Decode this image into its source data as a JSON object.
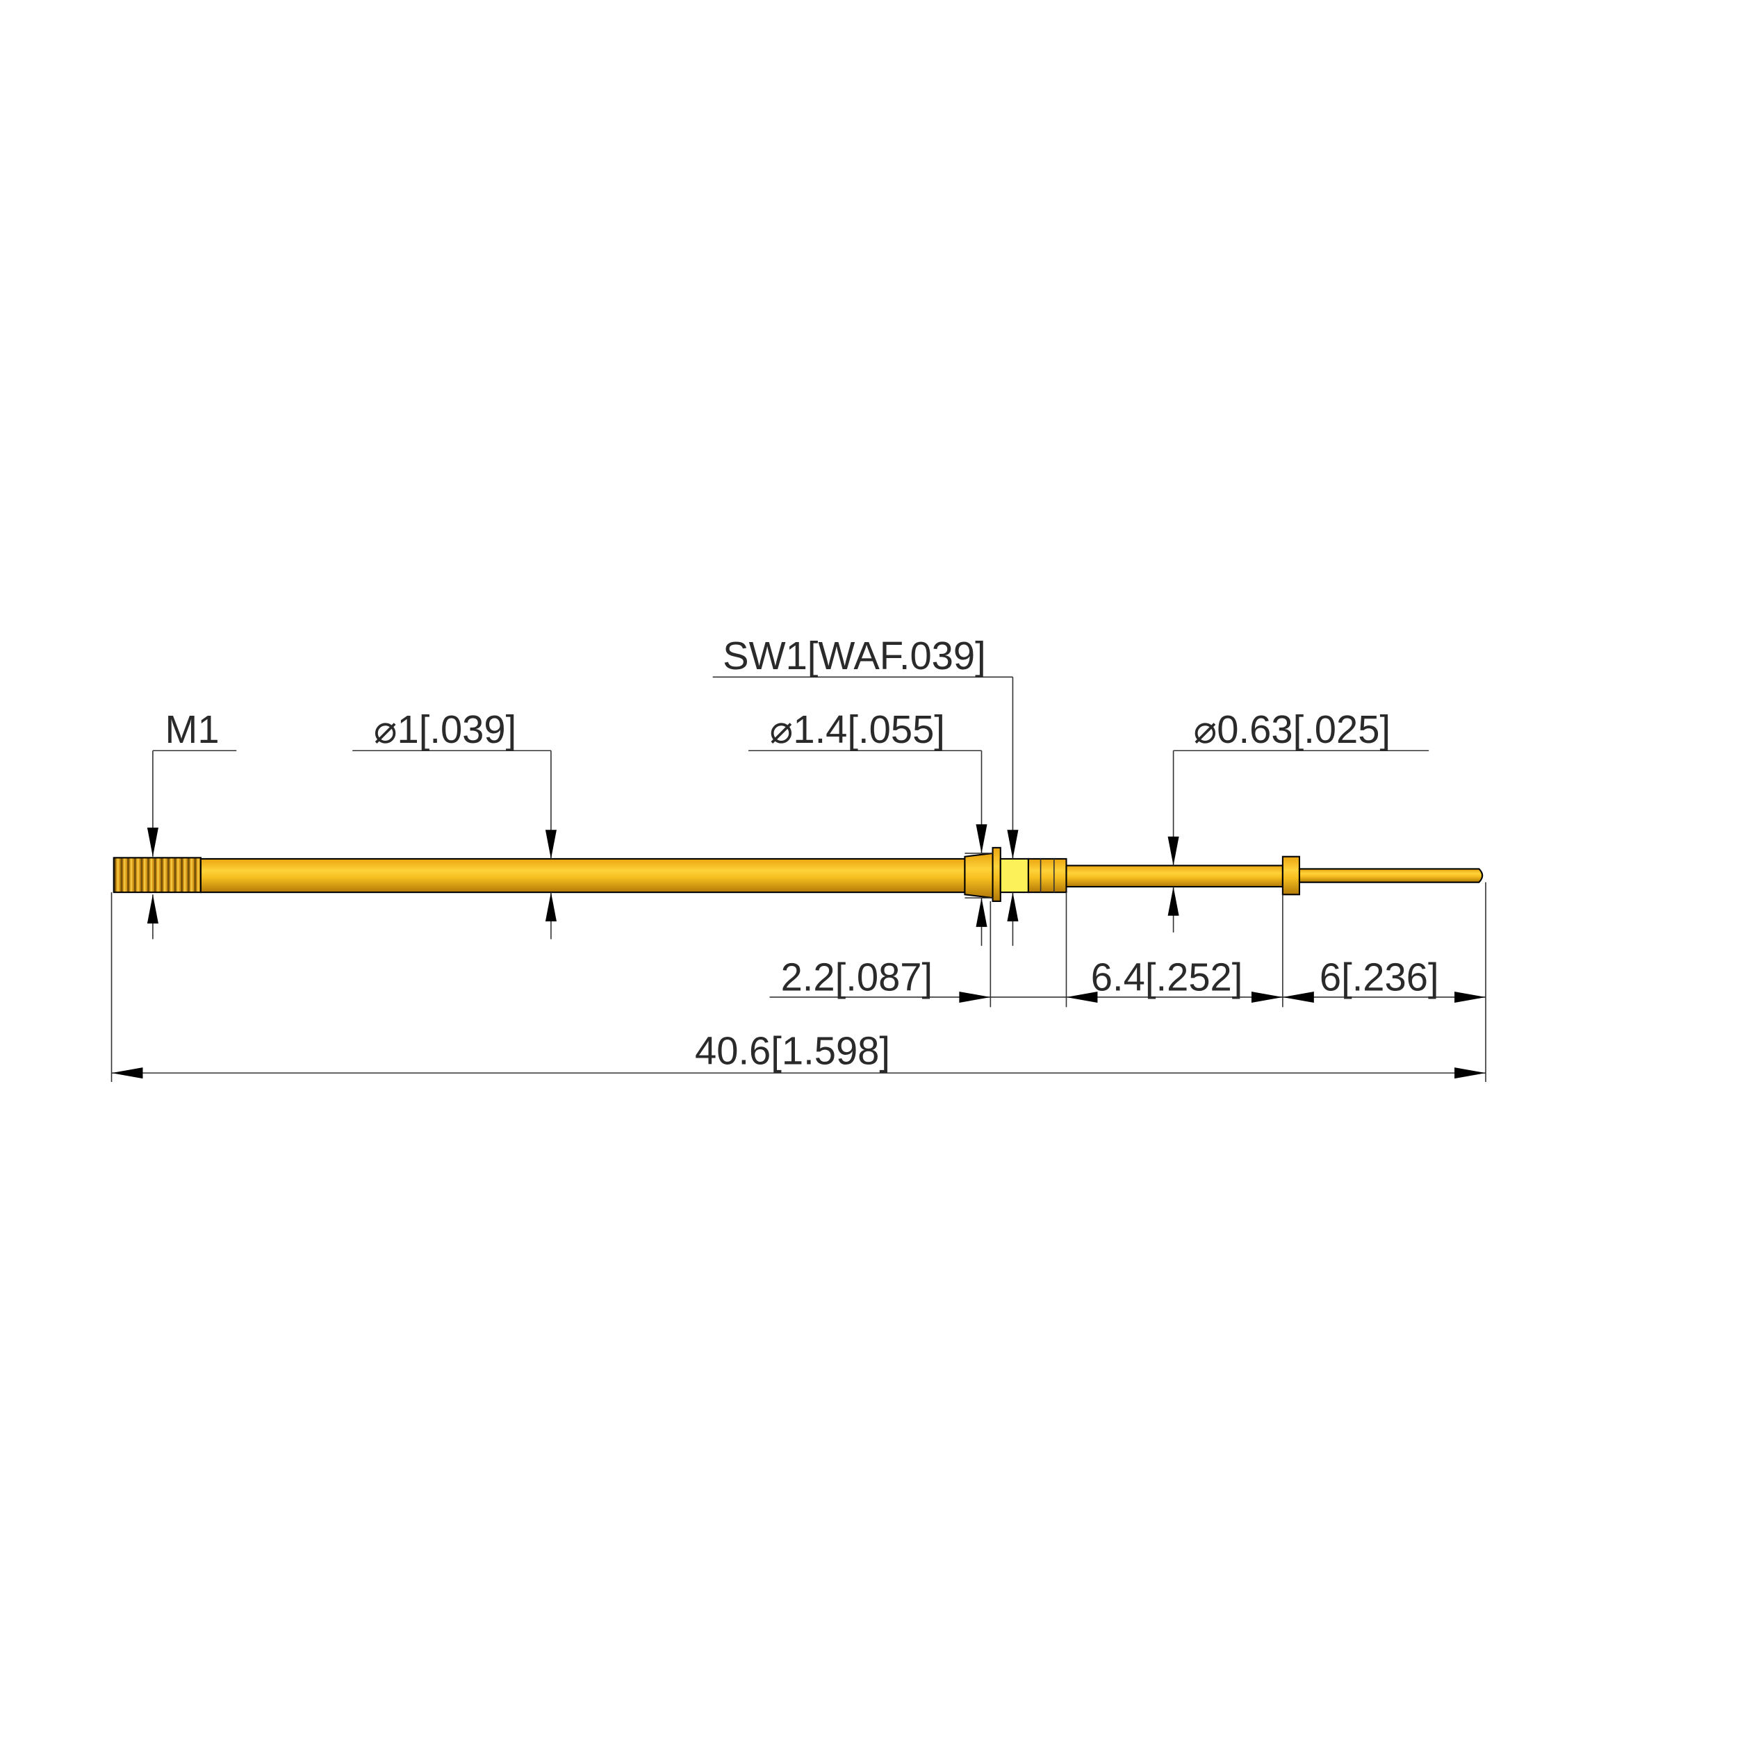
{
  "drawing": {
    "part_colors": {
      "gold": "#f5b81c",
      "hex_face": "#fdf15a",
      "outline": "#000000"
    },
    "dimensions": {
      "thread": "M1",
      "shaft_diameter": "⌀1[.039]",
      "collar_diameter": "⌀1.4[.055]",
      "hex_size": "SW1[WAF.039]",
      "plunger_diameter": "⌀0.63[.025]",
      "collar_length": "2.2[.087]",
      "plunger_length": "6.4[.252]",
      "tip_length": "6[.236]",
      "overall_length": "40.6[1.598]"
    }
  }
}
